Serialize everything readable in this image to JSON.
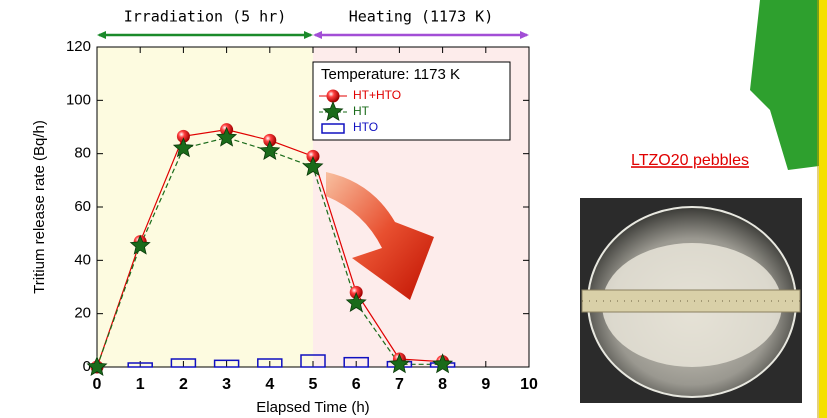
{
  "chart_data": {
    "type": "line",
    "x_label": "Elapsed Time (h)",
    "y_label": "Tritium release rate (Bq/h)",
    "x": [
      0,
      1,
      2,
      3,
      4,
      5,
      6,
      7,
      8
    ],
    "xlim": [
      0,
      10
    ],
    "xticks": [
      0,
      1,
      2,
      3,
      4,
      5,
      6,
      7,
      8,
      9,
      10
    ],
    "ylim": [
      0,
      120
    ],
    "yticks": [
      0,
      20,
      40,
      60,
      80,
      100,
      120
    ],
    "regions": [
      {
        "label": "Irradiation (5 hr)",
        "from": 0,
        "to": 5,
        "color": "#fdfbe0",
        "arrow_color": "#1a8a2a"
      },
      {
        "label": "Heating (1173 K)",
        "from": 5,
        "to": 10,
        "color": "#fdeceb",
        "arrow_color": "#a24ed6"
      }
    ],
    "legend_title": "Temperature: 1173 K",
    "series": [
      {
        "name": "HT+HTO",
        "color": "#e00000",
        "marker": "circle",
        "values": [
          0,
          47,
          86.5,
          89,
          85,
          79,
          28,
          3,
          2
        ]
      },
      {
        "name": "HT",
        "color": "#1a6b1a",
        "marker": "star",
        "values": [
          0,
          45.5,
          82,
          86,
          81,
          75,
          24,
          1,
          1
        ]
      },
      {
        "name": "HTO",
        "color": "#1010c0",
        "marker": "bar",
        "values": [
          null,
          1.5,
          3,
          2.5,
          3,
          4.5,
          3.5,
          2,
          1.5
        ]
      }
    ],
    "photo_caption": "LTZO20 pebbles"
  }
}
